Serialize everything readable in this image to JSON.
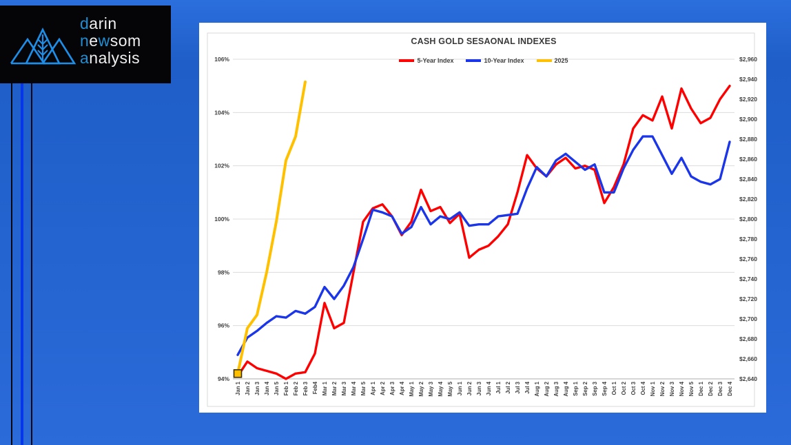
{
  "logo": {
    "lines": [
      [
        [
          "d",
          1
        ],
        [
          "arin",
          0
        ]
      ],
      [
        [
          "n",
          1
        ],
        [
          "e",
          0
        ],
        [
          "w",
          1
        ],
        [
          "som",
          0
        ]
      ],
      [
        [
          "a",
          1
        ],
        [
          "nalysis",
          0
        ]
      ]
    ],
    "accent_color": "#1e8fd5",
    "text_color": "#efefef",
    "mark_color": "#1e8fe8",
    "background": "#050508"
  },
  "decor": {
    "stripe_colors": [
      "#05070d",
      "#0636ea",
      "#05070d"
    ]
  },
  "chart_data": {
    "type": "line",
    "title": "CASH GOLD SESAONAL INDEXES",
    "grid": "horizontal",
    "legend_position": "top-center",
    "background": "#ffffff",
    "frame_color": "#d9d9d9",
    "gridline_color": "#dcdcdc",
    "axis_line_color": "#aeaeae",
    "label_color": "#3f3f3f",
    "y_left": {
      "min": 94,
      "max": 106,
      "step": 2,
      "format": "percent",
      "labels": [
        "106%",
        "104%",
        "102%",
        "100%",
        "98%",
        "96%",
        "94%"
      ]
    },
    "y_right": {
      "min": 2640,
      "max": 2960,
      "step": 20,
      "format": "dollars",
      "labels": [
        "$2,960",
        "$2,940",
        "$2,920",
        "$2,900",
        "$2,880",
        "$2,860",
        "$2,840",
        "$2,820",
        "$2,800",
        "$2,780",
        "$2,760",
        "$2,740",
        "$2,720",
        "$2,700",
        "$2,680",
        "$2,660",
        "$2,640"
      ]
    },
    "categories": [
      "Jan 1",
      "Jan 2",
      "Jan 3",
      "Jan 4",
      "Jan 5",
      "Feb 1",
      "Feb 2",
      "Feb 3",
      "Feb4",
      "Mar 1",
      "Mar 2",
      "Mar 3",
      "Mar 4",
      "Mar 5",
      "Apr 1",
      "Apr 2",
      "Apr 3",
      "Apr 4",
      "May 1",
      "May 2",
      "May 3",
      "May 4",
      "May 5",
      "Jun 1",
      "Jun 2",
      "Jun 3",
      "Jun 4",
      "Jul 1",
      "Jul 2",
      "Jul 3",
      "Jul 4",
      "Aug 1",
      "Aug 2",
      "Aug 3",
      "Aug 4",
      "Sep 1",
      "Sep 2",
      "Sep 3",
      "Sep 4",
      "Oct 1",
      "Oct 2",
      "Oct 3",
      "Oct 4",
      "Nov 1",
      "Nov 2",
      "Nov 3",
      "Nov 4",
      "Nov 5",
      "Dec 1",
      "Dec 2",
      "Dec 3",
      "Dec 4"
    ],
    "series": [
      {
        "name": "5-Year Index",
        "color": "#ff0000",
        "width": 3.4,
        "values": [
          94.1,
          94.65,
          94.4,
          94.3,
          94.2,
          94.0,
          94.2,
          94.25,
          94.95,
          96.85,
          95.9,
          96.1,
          98.0,
          99.9,
          100.4,
          100.55,
          100.1,
          99.4,
          99.9,
          101.1,
          100.3,
          100.45,
          99.85,
          100.2,
          98.55,
          98.85,
          99.0,
          99.35,
          99.8,
          101.0,
          102.4,
          101.9,
          101.6,
          102.05,
          102.3,
          101.9,
          102.0,
          101.85,
          100.6,
          101.2,
          102.05,
          103.4,
          103.9,
          103.7,
          104.6,
          103.4,
          104.9,
          104.15,
          103.6,
          103.8,
          104.5,
          105.0
        ]
      },
      {
        "name": "10-Year Index",
        "color": "#1b35e8",
        "width": 3.4,
        "values": [
          94.9,
          95.55,
          95.8,
          96.1,
          96.35,
          96.3,
          96.55,
          96.45,
          96.7,
          97.45,
          97.0,
          97.5,
          98.2,
          99.25,
          100.35,
          100.25,
          100.1,
          99.45,
          99.7,
          100.45,
          99.8,
          100.1,
          100.0,
          100.25,
          99.75,
          99.8,
          99.8,
          100.1,
          100.15,
          100.2,
          101.15,
          101.95,
          101.6,
          102.2,
          102.45,
          102.15,
          101.85,
          102.05,
          101.0,
          101.0,
          101.9,
          102.6,
          103.1,
          103.1,
          102.4,
          101.7,
          102.3,
          101.6,
          101.4,
          101.3,
          101.5,
          102.9
        ]
      },
      {
        "name": "2025",
        "color": "#ffc000",
        "width": 4,
        "marker_first_point": true,
        "marker_border": "#3d2e00",
        "values": [
          94.2,
          95.9,
          96.4,
          98.0,
          99.9,
          102.2,
          103.1,
          105.15
        ]
      }
    ]
  }
}
